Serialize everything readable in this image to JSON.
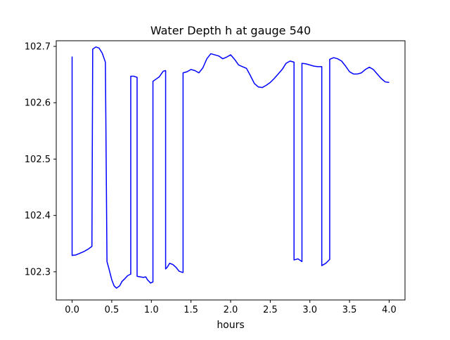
{
  "chart_data": {
    "type": "line",
    "title": "Water Depth h at gauge 540",
    "xlabel": "hours",
    "ylabel": "",
    "xlim": [
      -0.2,
      4.2
    ],
    "ylim": [
      102.25,
      102.71
    ],
    "xticks": [
      0.0,
      0.5,
      1.0,
      1.5,
      2.0,
      2.5,
      3.0,
      3.5,
      4.0
    ],
    "xtick_labels": [
      "0.0",
      "0.5",
      "1.0",
      "1.5",
      "2.0",
      "2.5",
      "3.0",
      "3.5",
      "4.0"
    ],
    "yticks": [
      102.3,
      102.4,
      102.5,
      102.6,
      102.7
    ],
    "ytick_labels": [
      "102.3",
      "102.4",
      "102.5",
      "102.6",
      "102.7"
    ],
    "grid": false,
    "legend": "none",
    "series": [
      {
        "color": "#0000ff",
        "x": [
          0.0,
          0.0,
          0.05,
          0.1,
          0.15,
          0.2,
          0.25,
          0.26,
          0.3,
          0.34,
          0.38,
          0.42,
          0.44,
          0.44,
          0.46,
          0.5,
          0.53,
          0.56,
          0.6,
          0.63,
          0.66,
          0.7,
          0.74,
          0.74,
          0.78,
          0.82,
          0.82,
          0.86,
          0.9,
          0.93,
          0.95,
          0.97,
          0.99,
          1.02,
          1.02,
          1.06,
          1.1,
          1.15,
          1.18,
          1.18,
          1.2,
          1.23,
          1.27,
          1.31,
          1.35,
          1.39,
          1.4,
          1.4,
          1.45,
          1.5,
          1.55,
          1.6,
          1.65,
          1.7,
          1.75,
          1.8,
          1.85,
          1.9,
          1.95,
          2.0,
          2.05,
          2.1,
          2.15,
          2.2,
          2.25,
          2.3,
          2.35,
          2.4,
          2.45,
          2.5,
          2.55,
          2.6,
          2.65,
          2.7,
          2.75,
          2.8,
          2.8,
          2.85,
          2.9,
          2.9,
          2.95,
          3.0,
          3.05,
          3.1,
          3.15,
          3.15,
          3.2,
          3.25,
          3.25,
          3.3,
          3.35,
          3.4,
          3.45,
          3.5,
          3.55,
          3.6,
          3.65,
          3.7,
          3.75,
          3.8,
          3.85,
          3.9,
          3.95,
          4.0
        ],
        "y": [
          102.682,
          102.329,
          102.33,
          102.333,
          102.336,
          102.34,
          102.345,
          102.695,
          102.699,
          102.697,
          102.688,
          102.672,
          102.318,
          102.318,
          102.308,
          102.286,
          102.275,
          102.271,
          102.275,
          102.283,
          102.287,
          102.293,
          102.296,
          102.647,
          102.647,
          102.645,
          102.292,
          102.291,
          102.29,
          102.291,
          102.286,
          102.283,
          102.28,
          102.282,
          102.638,
          102.642,
          102.646,
          102.656,
          102.657,
          102.305,
          102.308,
          102.315,
          102.313,
          102.308,
          102.301,
          102.299,
          102.299,
          102.653,
          102.655,
          102.659,
          102.657,
          102.653,
          102.662,
          102.678,
          102.687,
          102.685,
          102.683,
          102.678,
          102.681,
          102.685,
          102.677,
          102.667,
          102.664,
          102.661,
          102.648,
          102.634,
          102.628,
          102.627,
          102.631,
          102.636,
          102.643,
          102.651,
          102.659,
          102.67,
          102.674,
          102.672,
          102.321,
          102.323,
          102.318,
          102.67,
          102.669,
          102.667,
          102.665,
          102.664,
          102.664,
          102.311,
          102.315,
          102.322,
          102.677,
          102.68,
          102.678,
          102.674,
          102.665,
          102.655,
          102.651,
          102.651,
          102.653,
          102.659,
          102.663,
          102.659,
          102.651,
          102.643,
          102.637,
          102.636
        ]
      }
    ]
  }
}
